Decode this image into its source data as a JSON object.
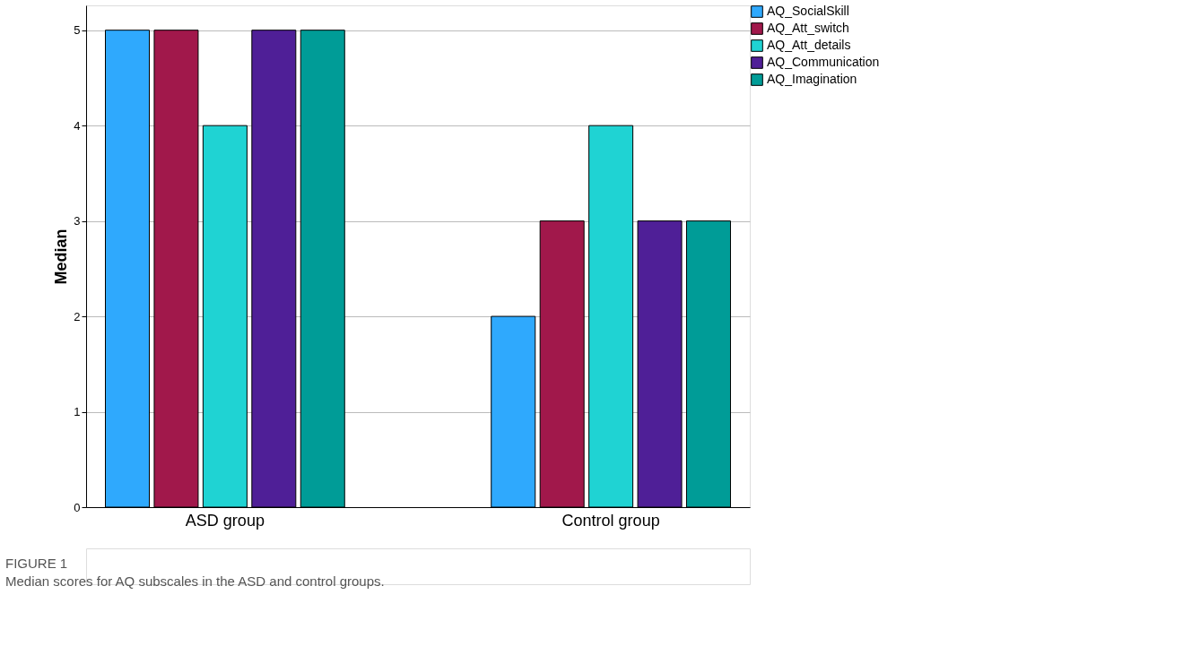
{
  "chart_data": {
    "type": "bar",
    "categories": [
      "ASD group",
      "Control group"
    ],
    "ylabel": "Median",
    "series": [
      {
        "name": "AQ_SocialSkill",
        "color": "#2fa9fd",
        "values": [
          5,
          2
        ]
      },
      {
        "name": "AQ_Att_switch",
        "color": "#a1184b",
        "values": [
          5,
          3
        ]
      },
      {
        "name": "AQ_Att_details",
        "color": "#1fd3d3",
        "values": [
          4,
          4
        ]
      },
      {
        "name": "AQ_Communication",
        "color": "#4f1f97",
        "values": [
          5,
          3
        ]
      },
      {
        "name": "AQ_Imagination",
        "color": "#009c97",
        "values": [
          5,
          3
        ]
      }
    ],
    "ylim": [
      0,
      5.26
    ],
    "yticks": [
      0,
      1,
      2,
      3,
      4,
      5
    ],
    "grid": "y",
    "legend": "top right",
    "annotations": [
      "FIGURE 1",
      "Median scores for AQ subscales in the ASD and control groups."
    ]
  }
}
